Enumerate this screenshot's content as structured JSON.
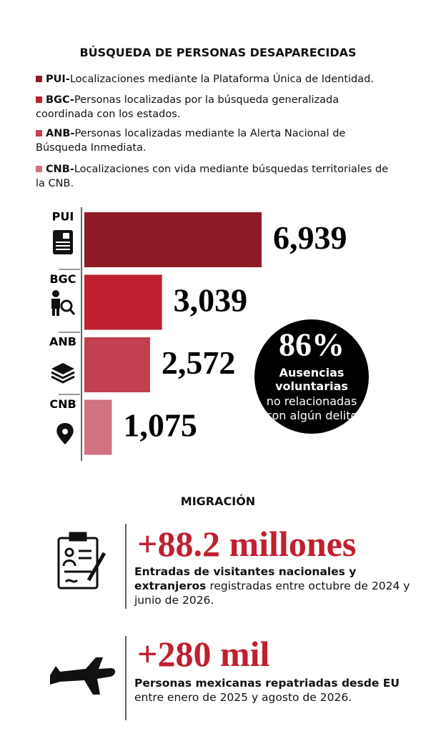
{
  "chart_data": {
    "type": "bar",
    "title": "BÚSQUEDA DE PERSONAS DESAPARECIDAS",
    "legend": [
      {
        "code": "PUI-",
        "text": "Localizaciones mediante la Plataforma Única de Identidad."
      },
      {
        "code": "BGC-",
        "text": "Personas localizadas por la búsqueda generalizada coordinada con los estados."
      },
      {
        "code": "ANB-",
        "text": "Personas localizadas mediante la Alerta Nacional de Búsqueda Inmediata."
      },
      {
        "code": "CNB-",
        "text": "Localizaciones con vida mediante búsquedas territoriales de la CNB."
      }
    ],
    "categories": [
      "PUI",
      "BGC",
      "ANB",
      "CNB"
    ],
    "values": [
      6939,
      3039,
      2572,
      1075
    ],
    "value_labels": [
      "6,939",
      "3,039",
      "2,572",
      "1,075"
    ],
    "colors": [
      "#8e1b26",
      "#c0202f",
      "#c2404f",
      "#d07280"
    ]
  },
  "stat": {
    "figure": "86%",
    "bold": "Ausencias voluntarias",
    "text": "no relacionadas con algún delito"
  },
  "migration": {
    "title": "MIGRACIÓN",
    "items": [
      {
        "figure": "+88.2 millones",
        "bold": "Entradas de visitantes nacionales y extranjeros",
        "text": "registradas entre octubre de 2024 y junio de 2026."
      },
      {
        "figure": "+280 mil",
        "bold": "Personas mexicanas repatriadas desde EU",
        "text": "entre enero de 2025 y agosto de 2026."
      }
    ]
  }
}
